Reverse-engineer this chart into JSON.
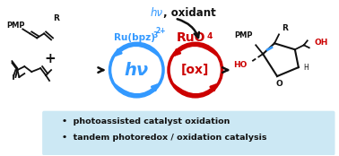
{
  "bg_color": "#ffffff",
  "light_blue_box": "#cce8f4",
  "blue_color": "#3399ff",
  "red_color": "#cc0000",
  "black_color": "#111111",
  "bullet_line1": "photoassisted catalyst oxidation",
  "bullet_line2": "tandem photoredox / oxidation catalysis",
  "hv_text": "hν",
  "oxidant_text": ", oxidant",
  "ru_bpz_text": "Ru(bpz)",
  "ru_bpz_sub": "3",
  "ru_bpz_sup": "2+",
  "ruo4_text": "RuO",
  "ruo4_sub": "4",
  "hv_label": "hν",
  "ox_label": "[ox]",
  "figsize": [
    3.78,
    1.74
  ],
  "dpi": 100
}
